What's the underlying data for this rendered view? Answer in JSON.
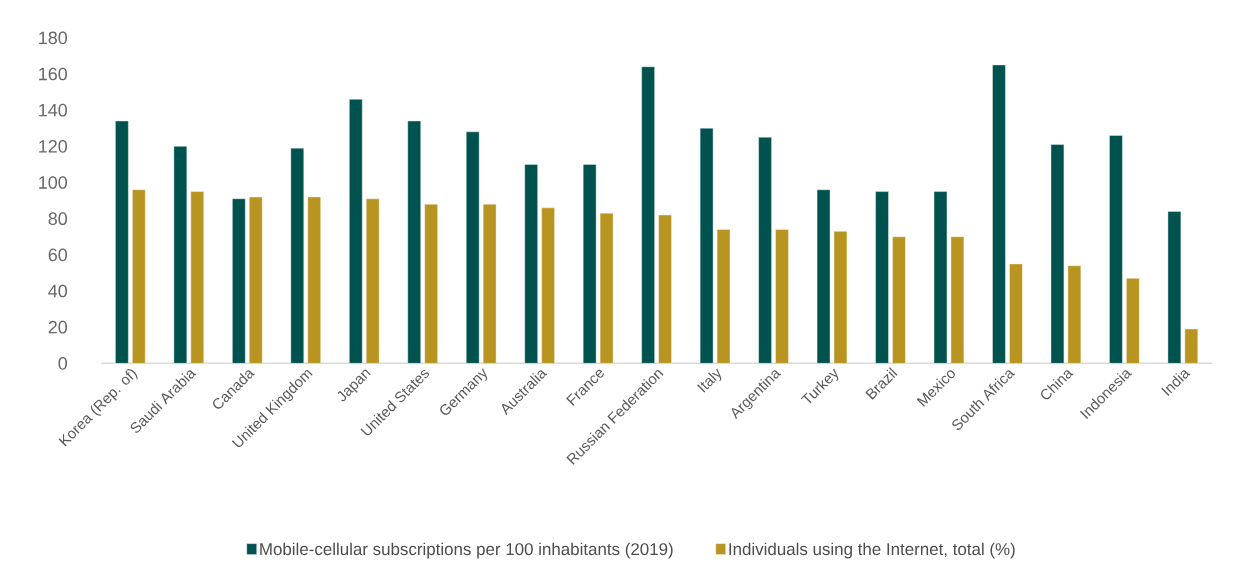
{
  "chart_data": {
    "type": "bar",
    "categories": [
      "Korea (Rep. of)",
      "Saudi Arabia",
      "Canada",
      "United Kingdom",
      "Japan",
      "United States",
      "Germany",
      "Australia",
      "France",
      "Russian Federation",
      "Italy",
      "Argentina",
      "Turkey",
      "Brazil",
      "Mexico",
      "South Africa",
      "China",
      "Indonesia",
      "India"
    ],
    "series": [
      {
        "name": "Mobile-cellular subscriptions per 100 inhabitants (2019)",
        "color": "#00524f",
        "values": [
          134,
          120,
          91,
          119,
          146,
          134,
          128,
          110,
          110,
          164,
          130,
          125,
          96,
          95,
          95,
          165,
          121,
          126,
          84
        ]
      },
      {
        "name": "Individuals using the Internet, total (%)",
        "color": "#b89520",
        "values": [
          96,
          95,
          92,
          92,
          91,
          88,
          88,
          86,
          83,
          82,
          74,
          74,
          73,
          70,
          70,
          55,
          54,
          47,
          19
        ]
      }
    ],
    "ylim": [
      0,
      180
    ],
    "yticks": [
      0,
      20,
      40,
      60,
      80,
      100,
      120,
      140,
      160,
      180
    ],
    "grid": false,
    "legend": "bottom"
  }
}
